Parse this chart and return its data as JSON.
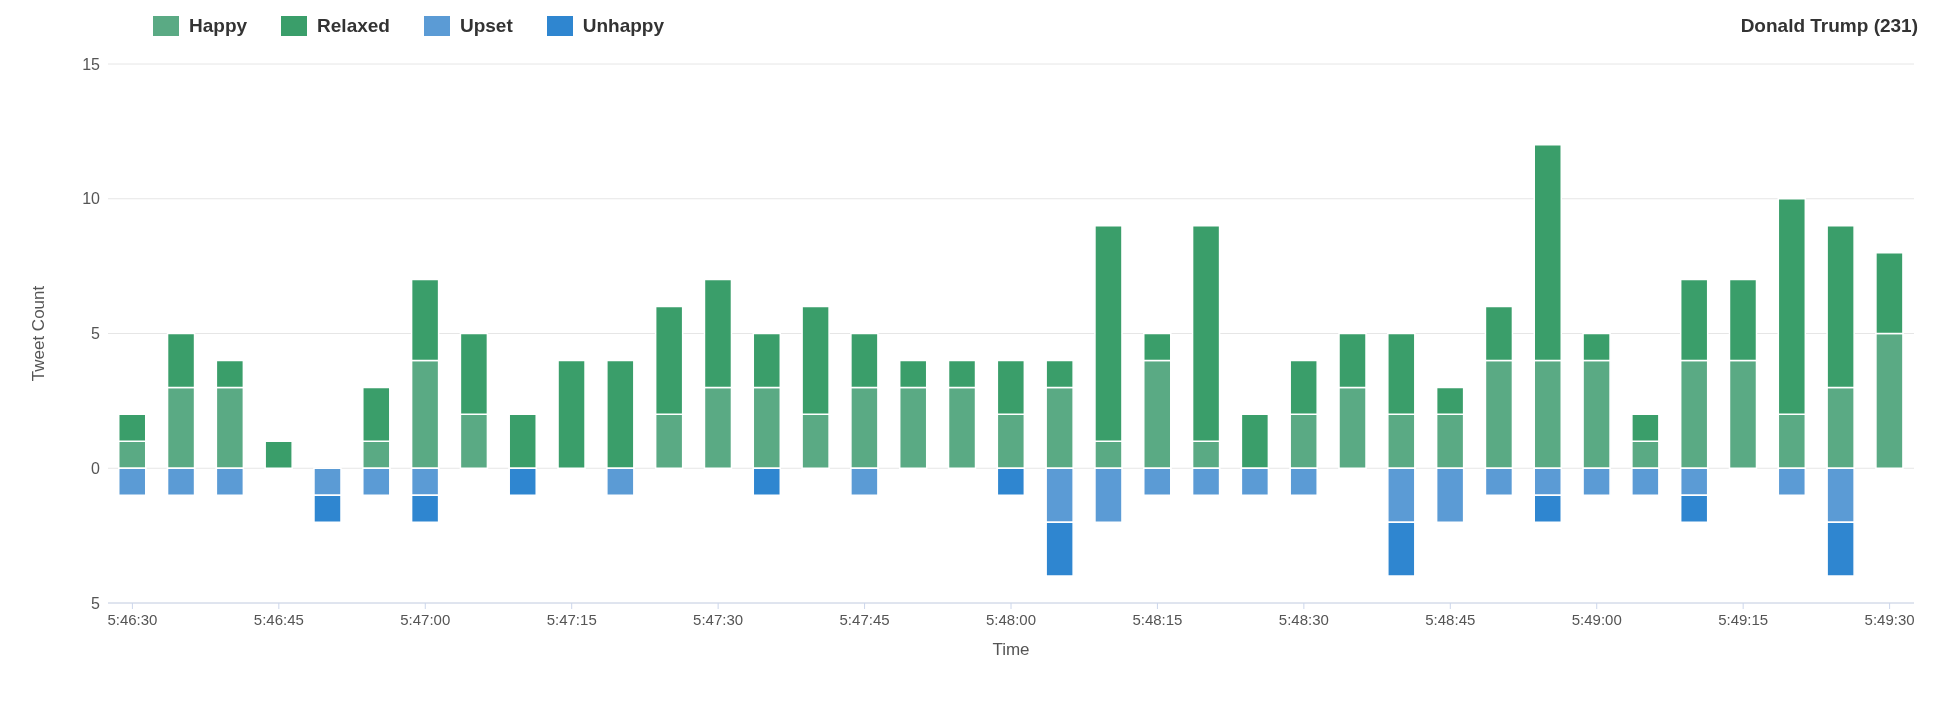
{
  "chart_data": {
    "type": "bar",
    "title": "Donald Trump (231)",
    "xlabel": "Time",
    "ylabel": "Tweet Count",
    "stacked": true,
    "grid": "y",
    "legend": "top left",
    "categories": [
      "5:46:30",
      null,
      null,
      "5:46:45",
      null,
      null,
      "5:47:00",
      null,
      null,
      "5:47:15",
      null,
      null,
      "5:47:30",
      null,
      null,
      "5:47:45",
      null,
      null,
      "5:48:00",
      null,
      null,
      "5:48:15",
      null,
      null,
      "5:48:30",
      null,
      null,
      "5:48:45",
      null,
      null,
      "5:49:00",
      null,
      null,
      "5:49:15",
      null,
      null,
      "5:49:30"
    ],
    "ylim": [
      -5,
      15
    ],
    "yticks": [
      {
        "value": -5,
        "label": "5"
      },
      0,
      5,
      10,
      15
    ],
    "series": [
      {
        "name": "Happy",
        "color": "#5aaa84",
        "values": [
          1,
          3,
          3,
          0,
          0,
          1,
          4,
          2,
          0,
          0,
          0,
          2,
          3,
          3,
          2,
          3,
          3,
          3,
          2,
          3,
          1,
          4,
          1,
          0,
          2,
          3,
          2,
          2,
          4,
          4,
          4,
          1,
          4,
          4,
          2,
          3,
          5
        ]
      },
      {
        "name": "Relaxed",
        "color": "#3a9e6a",
        "values": [
          1,
          2,
          1,
          1,
          0,
          2,
          3,
          3,
          2,
          4,
          4,
          4,
          4,
          2,
          4,
          2,
          1,
          1,
          2,
          1,
          8,
          1,
          8,
          2,
          2,
          2,
          3,
          1,
          2,
          8,
          1,
          1,
          3,
          3,
          8,
          6,
          3
        ]
      },
      {
        "name": "Upset",
        "color": "#5b9bd5",
        "values": [
          -1,
          -1,
          -1,
          0,
          -1,
          -1,
          -1,
          0,
          0,
          0,
          -1,
          0,
          0,
          0,
          0,
          -1,
          0,
          0,
          0,
          -2,
          -2,
          -1,
          -1,
          -1,
          -1,
          0,
          -2,
          -2,
          -1,
          -1,
          -1,
          -1,
          -1,
          0,
          -1,
          -2,
          0
        ]
      },
      {
        "name": "Unhappy",
        "color": "#2f86d0",
        "values": [
          0,
          0,
          0,
          0,
          -1,
          0,
          -1,
          0,
          -1,
          0,
          0,
          0,
          0,
          -1,
          0,
          0,
          0,
          0,
          -1,
          -2,
          0,
          0,
          0,
          0,
          0,
          0,
          -2,
          0,
          0,
          -1,
          0,
          0,
          -1,
          0,
          0,
          -2,
          0
        ]
      }
    ]
  }
}
